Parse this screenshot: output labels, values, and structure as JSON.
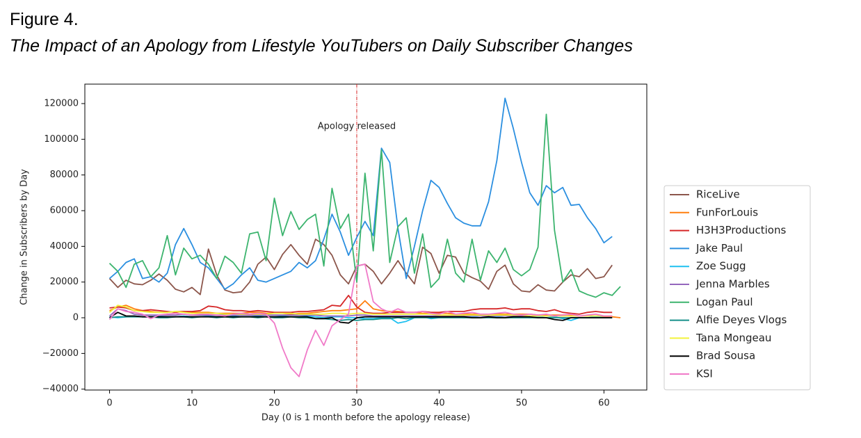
{
  "figure_label": "Figure 4.",
  "chart_data": {
    "type": "line",
    "title": "The Impact of an Apology from Lifestyle YouTubers on Daily Subscriber Changes",
    "xlabel": "Day (0 is 1 month before the apology release)",
    "ylabel": "Change in Subscribers by Day",
    "annotation": "Apology released",
    "vline": 30,
    "vline_color": "#d62728",
    "xlim": [
      -3,
      65.2
    ],
    "ylim": [
      -40500,
      130900
    ],
    "xticks": [
      0,
      10,
      20,
      30,
      40,
      50,
      60
    ],
    "yticks": [
      {
        "value": -40000,
        "label": "−40000"
      },
      {
        "value": -20000,
        "label": "−20000"
      },
      0,
      20000,
      40000,
      60000,
      80000,
      100000,
      120000
    ],
    "x": [
      0,
      1,
      2,
      3,
      4,
      5,
      6,
      7,
      8,
      9,
      10,
      11,
      12,
      13,
      14,
      15,
      16,
      17,
      18,
      19,
      20,
      21,
      22,
      23,
      24,
      25,
      26,
      27,
      28,
      29,
      30,
      31,
      32,
      33,
      34,
      35,
      36,
      37,
      38,
      39,
      40,
      41,
      42,
      43,
      44,
      45,
      46,
      47,
      48,
      49,
      50,
      51,
      52,
      53,
      54,
      55,
      56,
      57,
      58,
      59,
      60,
      61,
      62
    ],
    "legend": "right",
    "series": [
      {
        "name": "RiceLive",
        "color": "#8c564b",
        "values": [
          22000,
          17000,
          21000,
          19000,
          18500,
          21000,
          24500,
          21000,
          16000,
          14500,
          17000,
          13000,
          38500,
          24000,
          15500,
          14000,
          14500,
          20000,
          30000,
          34000,
          27000,
          35500,
          41000,
          35000,
          30000,
          44000,
          41000,
          35000,
          24000,
          19000,
          29000,
          30000,
          26000,
          19000,
          25000,
          32000,
          25000,
          19000,
          39500,
          36000,
          25000,
          35000,
          34000,
          25000,
          22500,
          20500,
          16000,
          26000,
          29500,
          19000,
          15000,
          14500,
          18500,
          15500,
          15000,
          20000,
          24000,
          23000,
          27500,
          22000,
          23000,
          29500,
          null
        ]
      },
      {
        "name": "FunForLouis",
        "color": "#ff7f0e",
        "values": [
          4000,
          6000,
          7000,
          5000,
          4000,
          3500,
          3000,
          3000,
          3500,
          3500,
          3000,
          3000,
          3000,
          2500,
          2500,
          2500,
          2500,
          3000,
          3000,
          2500,
          2500,
          2500,
          2000,
          2500,
          2500,
          3000,
          3500,
          4000,
          4000,
          4500,
          5000,
          9500,
          5000,
          4000,
          3500,
          3500,
          3000,
          3000,
          2500,
          2500,
          2500,
          2500,
          2000,
          2000,
          2000,
          2000,
          2000,
          2000,
          2000,
          2000,
          2000,
          2000,
          1500,
          1500,
          1500,
          1500,
          1500,
          1000,
          1000,
          1000,
          500,
          500,
          0
        ]
      },
      {
        "name": "H3H3Productions",
        "color": "#d62728",
        "values": [
          5500,
          6000,
          5500,
          4000,
          4000,
          4500,
          4000,
          3500,
          3000,
          3500,
          3500,
          4000,
          6500,
          6000,
          4500,
          4000,
          4000,
          3500,
          4000,
          3500,
          3000,
          3000,
          3000,
          3500,
          3500,
          4000,
          4500,
          7000,
          6500,
          12500,
          6000,
          3000,
          2500,
          2500,
          3000,
          3000,
          3000,
          3000,
          3500,
          3000,
          3000,
          3500,
          3500,
          3500,
          4500,
          5000,
          5000,
          5000,
          5500,
          4500,
          5000,
          5000,
          4000,
          3500,
          4500,
          3000,
          2500,
          2000,
          3000,
          3500,
          3000,
          3000,
          null
        ]
      },
      {
        "name": "Jake Paul",
        "color": "#2b8fe0",
        "values": [
          22000,
          26000,
          31000,
          33000,
          22000,
          23000,
          20000,
          25000,
          41000,
          50000,
          41000,
          31000,
          28000,
          22000,
          16000,
          19000,
          24000,
          28000,
          21000,
          20000,
          22000,
          24000,
          26000,
          31000,
          28000,
          32000,
          44000,
          58000,
          48000,
          35000,
          45000,
          54000,
          46000,
          95000,
          87000,
          50000,
          22000,
          40000,
          60000,
          77000,
          73000,
          64000,
          56000,
          53000,
          51500,
          51500,
          65000,
          88000,
          123000,
          106000,
          87000,
          70000,
          63000,
          74000,
          70000,
          73000,
          63000,
          63500,
          56000,
          50000,
          42000,
          45500,
          null
        ]
      },
      {
        "name": "Zoe Sugg",
        "color": "#1ec0f0",
        "values": [
          500,
          0,
          500,
          1000,
          500,
          500,
          1000,
          500,
          500,
          1000,
          500,
          500,
          1000,
          500,
          500,
          1000,
          500,
          500,
          1000,
          500,
          500,
          1000,
          500,
          500,
          1000,
          500,
          0,
          500,
          500,
          0,
          0,
          -500,
          -500,
          0,
          0,
          -3000,
          -2000,
          0,
          500,
          -500,
          0,
          500,
          500,
          0,
          500,
          0,
          500,
          500,
          0,
          500,
          500,
          0,
          500,
          0,
          500,
          -500,
          -1500,
          0,
          0,
          500,
          0,
          0,
          null
        ]
      },
      {
        "name": "Jenna Marbles",
        "color": "#9467bd",
        "values": [
          1000,
          5000,
          4000,
          2000,
          1500,
          1500,
          1500,
          1500,
          1500,
          2000,
          1500,
          1500,
          1500,
          1500,
          1500,
          1500,
          1500,
          1500,
          1500,
          1500,
          1500,
          1500,
          1500,
          1500,
          1500,
          1500,
          1000,
          1000,
          1000,
          1000,
          1500,
          1500,
          1000,
          1000,
          1000,
          1000,
          1000,
          1000,
          1000,
          1000,
          1000,
          1000,
          1000,
          1000,
          1000,
          1000,
          1000,
          1000,
          1000,
          1000,
          1000,
          1000,
          1000,
          1000,
          1000,
          1000,
          1000,
          1000,
          1000,
          1000,
          1000,
          1000,
          null
        ]
      },
      {
        "name": "Logan Paul",
        "color": "#3cb46e",
        "values": [
          30500,
          26000,
          17000,
          30000,
          32000,
          23000,
          28000,
          46000,
          24000,
          39000,
          33000,
          35000,
          30000,
          22000,
          34500,
          31000,
          25000,
          47000,
          48000,
          32000,
          67000,
          46000,
          59500,
          49500,
          55000,
          58000,
          29000,
          72500,
          50000,
          58000,
          20000,
          81000,
          37500,
          94000,
          31000,
          51000,
          56000,
          25000,
          47000,
          17000,
          22000,
          44000,
          25000,
          20000,
          44000,
          21000,
          37500,
          31000,
          39000,
          27000,
          23500,
          27000,
          39500,
          114000,
          49000,
          20000,
          27000,
          15000,
          13000,
          11500,
          14000,
          12500,
          17500
        ]
      },
      {
        "name": "Alfie Deyes Vlogs",
        "color": "#168f8a",
        "values": [
          0,
          500,
          500,
          500,
          500,
          500,
          0,
          0,
          500,
          500,
          0,
          500,
          500,
          0,
          500,
          0,
          500,
          500,
          0,
          500,
          0,
          0,
          500,
          0,
          0,
          -500,
          -500,
          -1000,
          -1500,
          -1000,
          -1500,
          -1000,
          -1000,
          -500,
          -500,
          0,
          -500,
          0,
          0,
          0,
          0,
          0,
          0,
          0,
          0,
          0,
          0,
          0,
          0,
          0,
          0,
          0,
          0,
          0,
          0,
          0,
          0,
          0,
          0,
          0,
          0,
          0,
          null
        ]
      },
      {
        "name": "Tana Mongeau",
        "color": "#f2f23a",
        "values": [
          3000,
          7000,
          6000,
          4000,
          3500,
          3000,
          3000,
          3000,
          3500,
          3000,
          2500,
          2500,
          2500,
          2500,
          2000,
          2000,
          2000,
          2000,
          2000,
          2000,
          2500,
          2500,
          2500,
          2000,
          2000,
          2000,
          2000,
          2500,
          2500,
          2000,
          2500,
          2500,
          2000,
          2000,
          2000,
          2000,
          2000,
          2000,
          2000,
          2000,
          1500,
          1500,
          1500,
          1500,
          1500,
          1500,
          1500,
          1500,
          1500,
          1500,
          1500,
          1000,
          1000,
          1000,
          1000,
          1000,
          1000,
          1000,
          1000,
          1000,
          1000,
          1000,
          null
        ]
      },
      {
        "name": "Brad Sousa",
        "color": "#000000",
        "values": [
          0,
          3000,
          1000,
          1000,
          500,
          500,
          500,
          500,
          500,
          500,
          500,
          500,
          500,
          500,
          500,
          500,
          500,
          500,
          500,
          500,
          500,
          500,
          500,
          500,
          500,
          -500,
          -500,
          0,
          -2500,
          -3000,
          0,
          500,
          500,
          500,
          500,
          500,
          500,
          500,
          500,
          500,
          500,
          500,
          500,
          500,
          0,
          0,
          500,
          0,
          0,
          500,
          500,
          500,
          0,
          0,
          -1000,
          -1500,
          0,
          0,
          0,
          0,
          0,
          0,
          null
        ]
      },
      {
        "name": "KSI",
        "color": "#f07ac8",
        "values": [
          -1000,
          5000,
          3500,
          3000,
          2000,
          -500,
          1500,
          2000,
          2500,
          2000,
          1500,
          2000,
          2000,
          1500,
          1000,
          2000,
          2500,
          2000,
          2500,
          2000,
          -3000,
          -17000,
          -28000,
          -33000,
          -18000,
          -7000,
          -15500,
          -4500,
          -1000,
          2000,
          29000,
          30000,
          9000,
          5000,
          3000,
          5000,
          3000,
          3000,
          3500,
          2500,
          2000,
          3500,
          2000,
          2500,
          3000,
          2000,
          2000,
          2500,
          3000,
          2000,
          1500,
          2000,
          1500,
          2000,
          1000,
          1500,
          2000,
          1000,
          1500,
          2000,
          1000,
          1000,
          null
        ]
      }
    ]
  }
}
